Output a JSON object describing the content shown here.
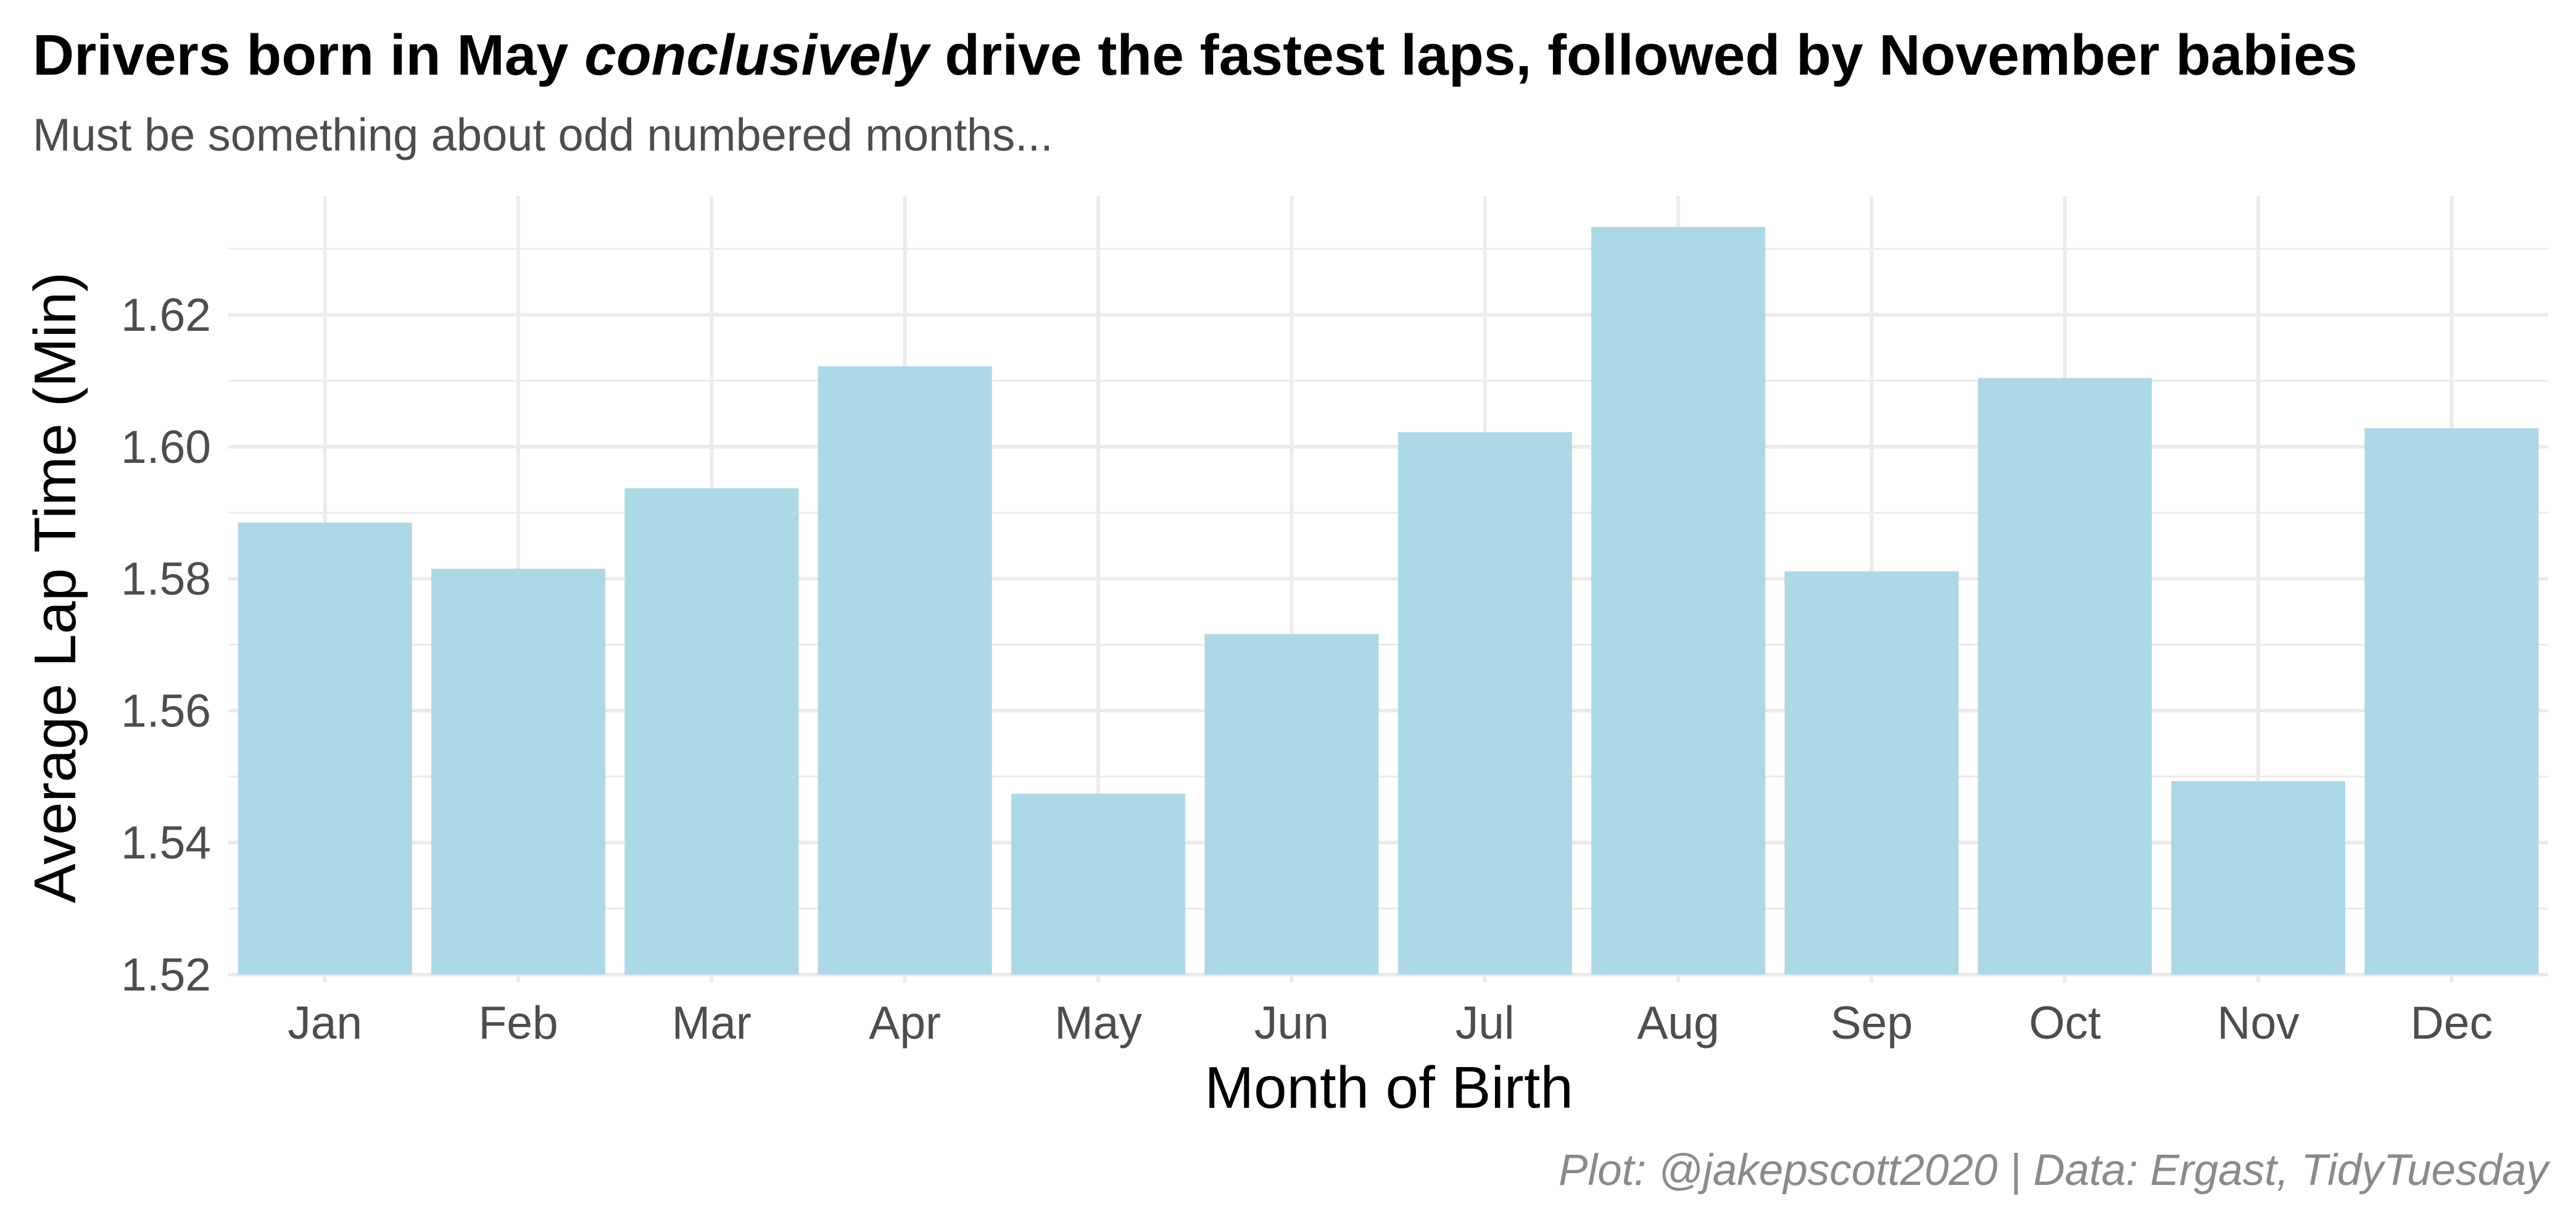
{
  "title_parts": {
    "before": "Drivers born in May ",
    "emph": "conclusively",
    "after": " drive the fastest laps, followed by November babies"
  },
  "subtitle": "Must be something about odd numbered months...",
  "caption": "Plot: @jakepscott2020 | Data: Ergast, TidyTuesday",
  "chart_data": {
    "type": "bar",
    "title": "Drivers born in May conclusively drive the fastest laps, followed by November babies",
    "subtitle": "Must be something about odd numbered months...",
    "xlabel": "Month of Birth",
    "ylabel": "Average Lap Time (Min)",
    "categories": [
      "Jan",
      "Feb",
      "Mar",
      "Apr",
      "May",
      "Jun",
      "Jul",
      "Aug",
      "Sep",
      "Oct",
      "Nov",
      "Dec"
    ],
    "values": [
      1.5885,
      1.5815,
      1.5937,
      1.6122,
      1.5474,
      1.5716,
      1.6022,
      1.6333,
      1.5811,
      1.6104,
      1.5493,
      1.6028
    ],
    "ylim": [
      1.52,
      1.635
    ],
    "yticks": [
      "1.52",
      "1.54",
      "1.56",
      "1.58",
      "1.60",
      "1.62"
    ],
    "grid": true,
    "legend": "none",
    "colors": {
      "bar": "#add8e6",
      "grid": "#ebebeb",
      "tick_text": "#4d4d4d"
    }
  }
}
